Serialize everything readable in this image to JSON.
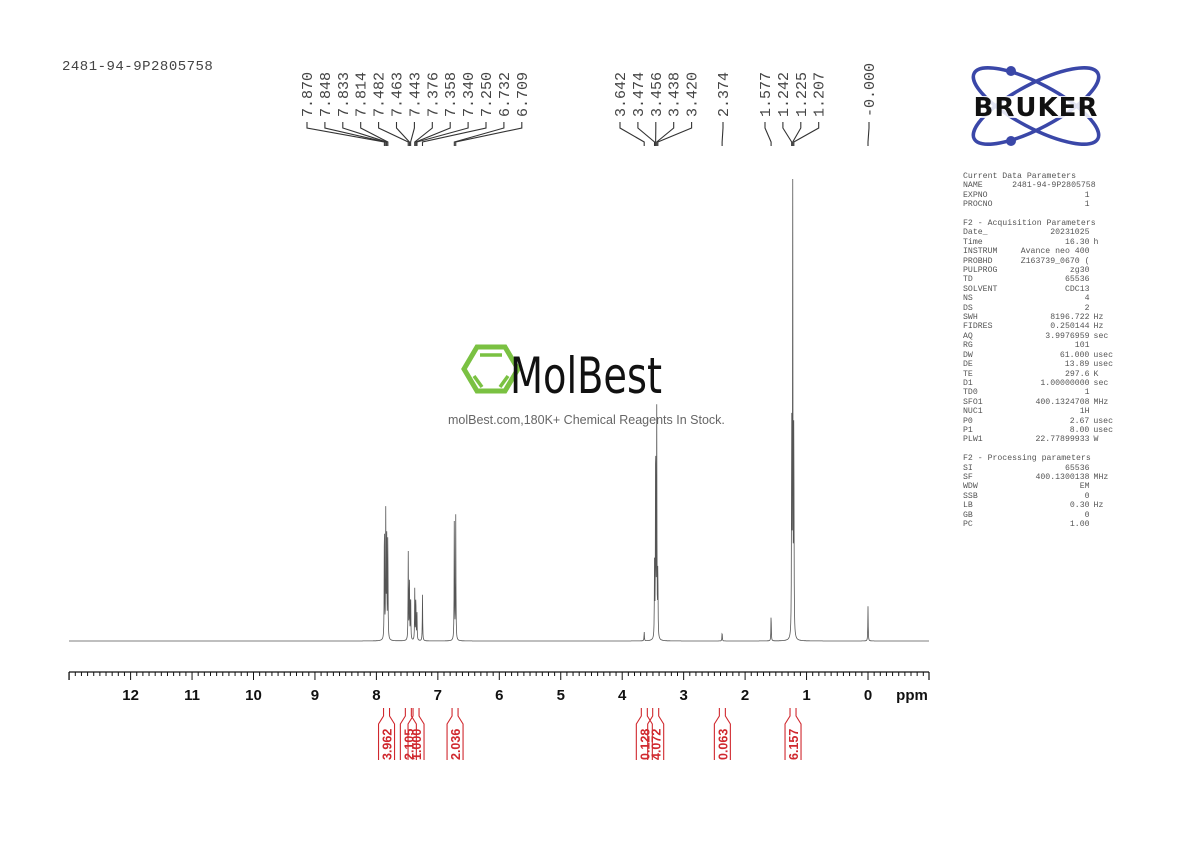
{
  "sample_id": "2481-94-9P2805758",
  "chart_data": {
    "type": "line",
    "title": "1H NMR spectrum 2481-94-9P2805758",
    "xlabel": "ppm",
    "ylabel": "",
    "xlim": [
      13.0,
      -1.0
    ],
    "x_reversed": true,
    "grid": false,
    "x_ticks": [
      12,
      11,
      10,
      9,
      8,
      7,
      6,
      5,
      4,
      3,
      2,
      1,
      0
    ],
    "x_tick_labels": [
      "12",
      "11",
      "10",
      "9",
      "8",
      "7",
      "6",
      "5",
      "4",
      "3",
      "2",
      "1",
      "0"
    ],
    "peak_labels": [
      "7.870",
      "7.848",
      "7.833",
      "7.814",
      "7.482",
      "7.463",
      "7.443",
      "7.376",
      "7.358",
      "7.340",
      "7.250",
      "6.732",
      "6.709",
      "3.642",
      "3.474",
      "3.456",
      "3.438",
      "3.420",
      "2.374",
      "1.577",
      "1.242",
      "1.225",
      "1.207",
      "-0.000"
    ],
    "peaks": [
      {
        "ppm": 7.87,
        "height": 0.28
      },
      {
        "ppm": 7.848,
        "height": 0.27
      },
      {
        "ppm": 7.833,
        "height": 0.25
      },
      {
        "ppm": 7.814,
        "height": 0.24
      },
      {
        "ppm": 7.482,
        "height": 0.19
      },
      {
        "ppm": 7.463,
        "height": 0.15
      },
      {
        "ppm": 7.443,
        "height": 0.11
      },
      {
        "ppm": 7.376,
        "height": 0.11
      },
      {
        "ppm": 7.358,
        "height": 0.1
      },
      {
        "ppm": 7.34,
        "height": 0.06
      },
      {
        "ppm": 7.25,
        "height": 0.1
      },
      {
        "ppm": 6.732,
        "height": 0.28
      },
      {
        "ppm": 6.709,
        "height": 0.27
      },
      {
        "ppm": 3.642,
        "height": 0.02
      },
      {
        "ppm": 3.474,
        "height": 0.16
      },
      {
        "ppm": 3.456,
        "height": 0.49
      },
      {
        "ppm": 3.438,
        "height": 0.49
      },
      {
        "ppm": 3.42,
        "height": 0.16
      },
      {
        "ppm": 2.374,
        "height": 0.02
      },
      {
        "ppm": 1.577,
        "height": 0.06
      },
      {
        "ppm": 1.242,
        "height": 0.49
      },
      {
        "ppm": 1.225,
        "height": 1.0
      },
      {
        "ppm": 1.207,
        "height": 0.49
      },
      {
        "ppm": 0.0,
        "height": 0.075
      }
    ],
    "integrals": [
      {
        "center": 7.84,
        "from": 7.95,
        "to": 7.72,
        "value": "3.962"
      },
      {
        "center": 7.46,
        "from": 7.55,
        "to": 7.41,
        "value": "2.105"
      },
      {
        "center": 7.36,
        "from": 7.41,
        "to": 7.3,
        "value": "1.000"
      },
      {
        "center": 6.72,
        "from": 6.8,
        "to": 6.64,
        "value": "2.036"
      },
      {
        "center": 3.64,
        "from": 3.7,
        "to": 3.58,
        "value": "0.128"
      },
      {
        "center": 3.45,
        "from": 3.55,
        "to": 3.36,
        "value": "4.072"
      },
      {
        "center": 2.37,
        "from": 2.43,
        "to": 2.31,
        "value": "0.063"
      },
      {
        "center": 1.22,
        "from": 1.3,
        "to": 1.14,
        "value": "6.157"
      }
    ]
  },
  "watermark": {
    "brand": "MolBest",
    "tagline": "molBest.com,180K+ Chemical Reagents In Stock."
  },
  "logo": {
    "text": "BRUKER"
  },
  "parameters": {
    "sections": [
      {
        "title": "Current Data Parameters",
        "rows": [
          {
            "k": "NAME",
            "v": "2481-94-9P2805758",
            "u": ""
          },
          {
            "k": "EXPNO",
            "v": "1",
            "u": ""
          },
          {
            "k": "PROCNO",
            "v": "1",
            "u": ""
          }
        ]
      },
      {
        "title": "F2 - Acquisition Parameters",
        "rows": [
          {
            "k": "Date_",
            "v": "20231025",
            "u": ""
          },
          {
            "k": "Time",
            "v": "16.30",
            "u": "h"
          },
          {
            "k": "INSTRUM",
            "v": "Avance neo 400",
            "u": ""
          },
          {
            "k": "PROBHD",
            "v": "Z163739_0670 (",
            "u": ""
          },
          {
            "k": "PULPROG",
            "v": "zg30",
            "u": ""
          },
          {
            "k": "TD",
            "v": "65536",
            "u": ""
          },
          {
            "k": "SOLVENT",
            "v": "CDC13",
            "u": ""
          },
          {
            "k": "NS",
            "v": "4",
            "u": ""
          },
          {
            "k": "DS",
            "v": "2",
            "u": ""
          },
          {
            "k": "SWH",
            "v": "8196.722",
            "u": "Hz"
          },
          {
            "k": "FIDRES",
            "v": "0.250144",
            "u": "Hz"
          },
          {
            "k": "AQ",
            "v": "3.9976959",
            "u": "sec"
          },
          {
            "k": "RG",
            "v": "101",
            "u": ""
          },
          {
            "k": "DW",
            "v": "61.000",
            "u": "usec"
          },
          {
            "k": "DE",
            "v": "13.89",
            "u": "usec"
          },
          {
            "k": "TE",
            "v": "297.6",
            "u": "K"
          },
          {
            "k": "D1",
            "v": "1.00000000",
            "u": "sec"
          },
          {
            "k": "TD0",
            "v": "1",
            "u": ""
          },
          {
            "k": "SFO1",
            "v": "400.1324708",
            "u": "MHz"
          },
          {
            "k": "NUC1",
            "v": "1H",
            "u": ""
          },
          {
            "k": "P0",
            "v": "2.67",
            "u": "usec"
          },
          {
            "k": "P1",
            "v": "8.00",
            "u": "usec"
          },
          {
            "k": "PLW1",
            "v": "22.77899933",
            "u": "W"
          }
        ]
      },
      {
        "title": "F2 - Processing parameters",
        "rows": [
          {
            "k": "SI",
            "v": "65536",
            "u": ""
          },
          {
            "k": "SF",
            "v": "400.1300138",
            "u": "MHz"
          },
          {
            "k": "WDW",
            "v": "EM",
            "u": ""
          },
          {
            "k": "SSB",
            "v": "0",
            "u": ""
          },
          {
            "k": "LB",
            "v": "0.30",
            "u": "Hz"
          },
          {
            "k": "GB",
            "v": "0",
            "u": ""
          },
          {
            "k": "PC",
            "v": "1.00",
            "u": ""
          }
        ]
      }
    ]
  }
}
